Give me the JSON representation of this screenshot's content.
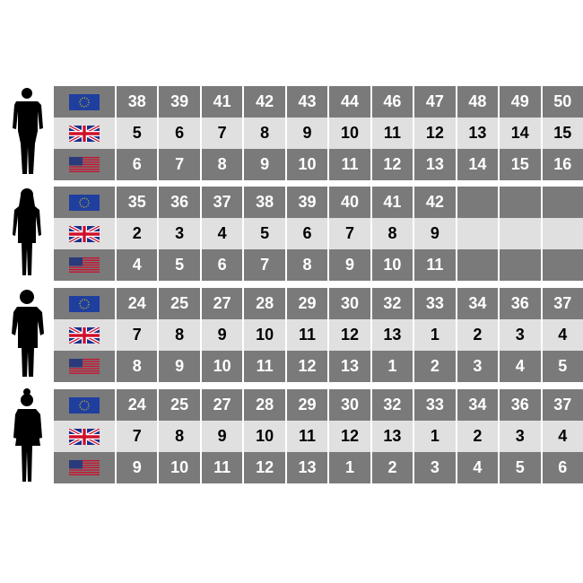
{
  "colors": {
    "dark_row": "#7a7a7a",
    "light_row": "#e0e0e0"
  },
  "flags": [
    "eu-flag-icon",
    "uk-flag-icon",
    "us-flag-icon"
  ],
  "groups": [
    {
      "figure": "man-silhouette",
      "rows": [
        [
          "38",
          "39",
          "41",
          "42",
          "43",
          "44",
          "46",
          "47",
          "48",
          "49",
          "50"
        ],
        [
          "5",
          "6",
          "7",
          "8",
          "9",
          "10",
          "11",
          "12",
          "13",
          "14",
          "15"
        ],
        [
          "6",
          "7",
          "8",
          "9",
          "10",
          "11",
          "12",
          "13",
          "14",
          "15",
          "16"
        ]
      ]
    },
    {
      "figure": "woman-silhouette",
      "rows": [
        [
          "35",
          "36",
          "37",
          "38",
          "39",
          "40",
          "41",
          "42",
          "",
          "",
          ""
        ],
        [
          "2",
          "3",
          "4",
          "5",
          "6",
          "7",
          "8",
          "9",
          "",
          "",
          ""
        ],
        [
          "4",
          "5",
          "6",
          "7",
          "8",
          "9",
          "10",
          "11",
          "",
          "",
          ""
        ]
      ]
    },
    {
      "figure": "boy-silhouette",
      "rows": [
        [
          "24",
          "25",
          "27",
          "28",
          "29",
          "30",
          "32",
          "33",
          "34",
          "36",
          "37"
        ],
        [
          "7",
          "8",
          "9",
          "10",
          "11",
          "12",
          "13",
          "1",
          "2",
          "3",
          "4"
        ],
        [
          "8",
          "9",
          "10",
          "11",
          "12",
          "13",
          "1",
          "2",
          "3",
          "4",
          "5"
        ]
      ]
    },
    {
      "figure": "girl-silhouette",
      "rows": [
        [
          "24",
          "25",
          "27",
          "28",
          "29",
          "30",
          "32",
          "33",
          "34",
          "36",
          "37"
        ],
        [
          "7",
          "8",
          "9",
          "10",
          "11",
          "12",
          "13",
          "1",
          "2",
          "3",
          "4"
        ],
        [
          "9",
          "10",
          "11",
          "12",
          "13",
          "1",
          "2",
          "3",
          "4",
          "5",
          "6"
        ]
      ]
    }
  ]
}
